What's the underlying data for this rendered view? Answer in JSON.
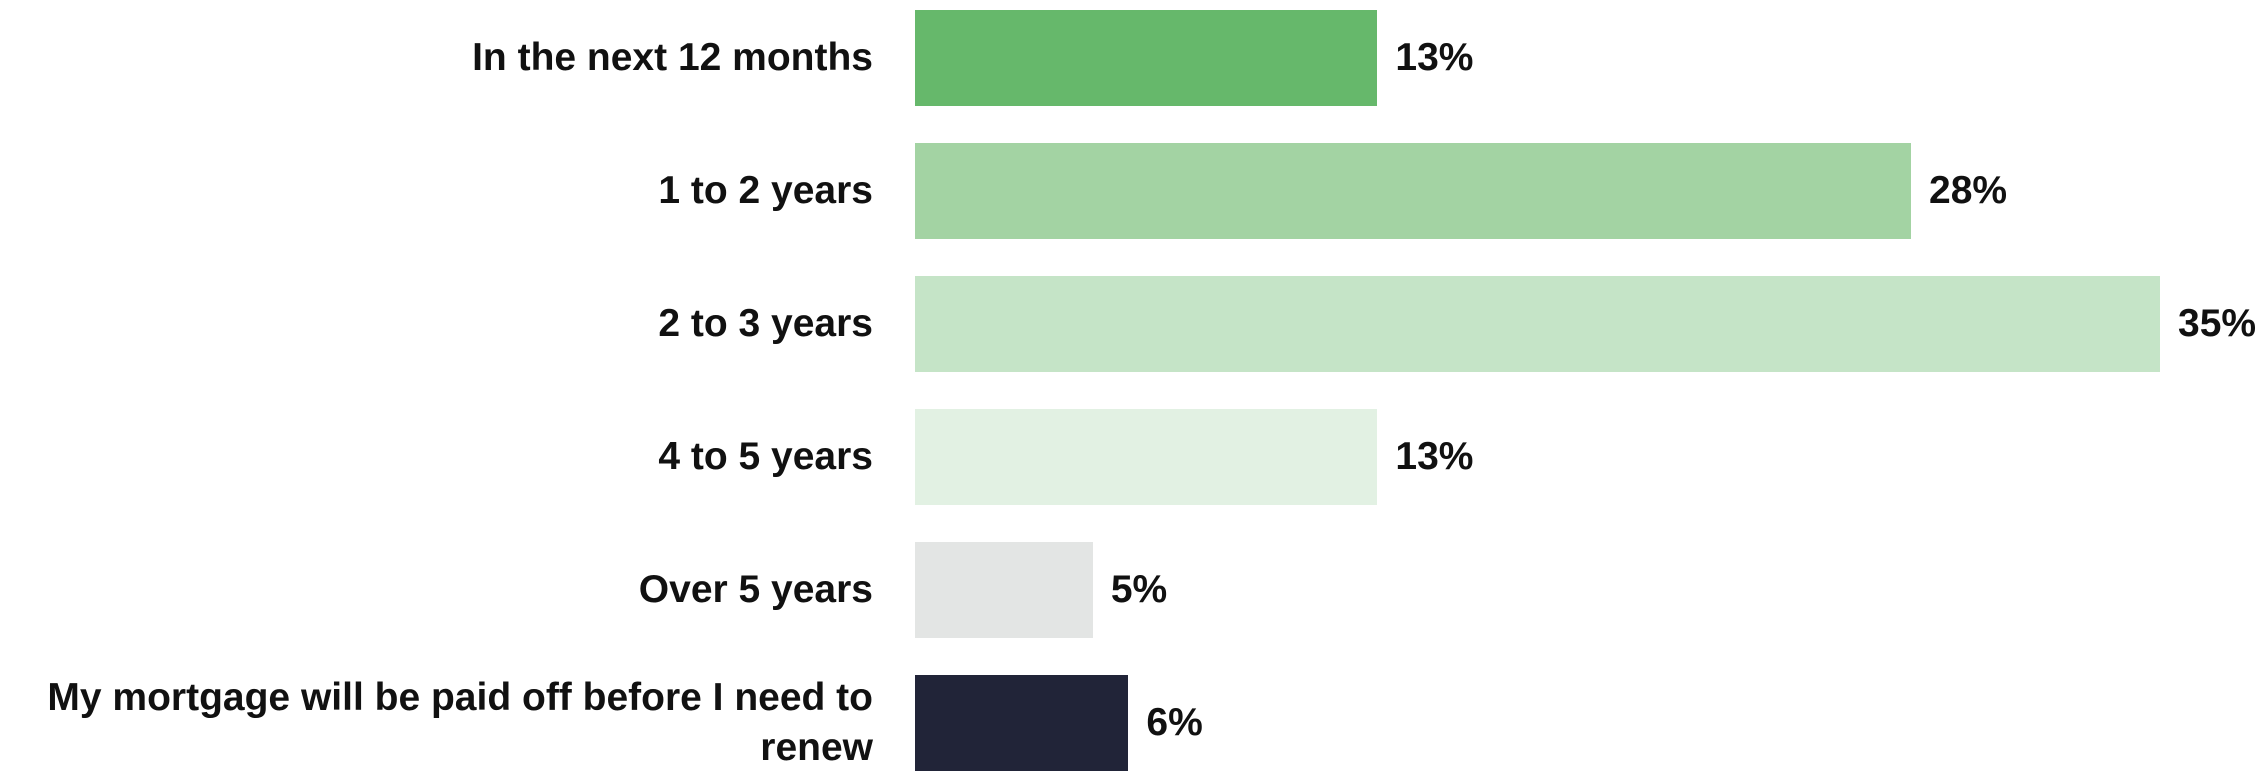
{
  "chart_data": {
    "type": "bar",
    "orientation": "horizontal",
    "title": "",
    "xlabel": "",
    "ylabel": "",
    "categories": [
      "In the next 12 months",
      "1 to 2 years",
      "2 to 3 years",
      "4 to 5 years",
      "Over 5 years",
      "My mortgage will be paid off before I need to renew"
    ],
    "values": [
      13,
      28,
      35,
      13,
      5,
      6
    ],
    "value_labels": [
      "13%",
      "28%",
      "35%",
      "13%",
      "5%",
      "6%"
    ],
    "colors": [
      "#66b86b",
      "#a3d3a3",
      "#c5e4c7",
      "#e2f1e3",
      "#e3e5e4",
      "#212438"
    ],
    "xlim": [
      0,
      35
    ],
    "grid": false,
    "legend": "none"
  }
}
